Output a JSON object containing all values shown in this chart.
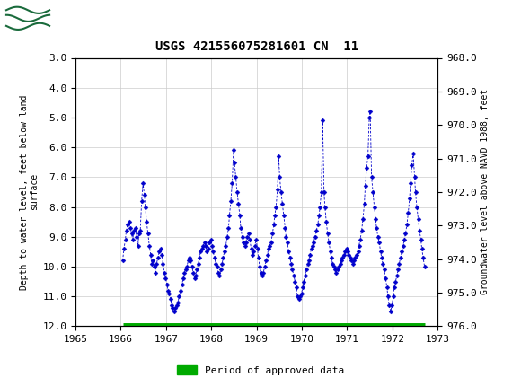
{
  "title": "USGS 421556075281601 CN  11",
  "ylabel_left": "Depth to water level, feet below land\nsurface",
  "ylabel_right": "Groundwater level above NAVD 1988, feet",
  "ylim_left": [
    3.0,
    12.0
  ],
  "ylim_right_top": 976.0,
  "ylim_right_bottom": 968.0,
  "xlim": [
    1965,
    1973
  ],
  "xticks": [
    1965,
    1966,
    1967,
    1968,
    1969,
    1970,
    1971,
    1972,
    1973
  ],
  "yticks_left": [
    3.0,
    4.0,
    5.0,
    6.0,
    7.0,
    8.0,
    9.0,
    10.0,
    11.0,
    12.0
  ],
  "yticks_right": [
    976.0,
    975.0,
    974.0,
    973.0,
    972.0,
    971.0,
    970.0,
    969.0,
    968.0
  ],
  "header_color": "#1a6b3c",
  "line_color": "#0000cc",
  "marker_color": "#0000cc",
  "grid_color": "#cccccc",
  "approved_bar_color": "#00aa00",
  "approved_bar_y": 12.0,
  "approved_bar_x_start": 1966.04,
  "approved_bar_x_end": 1972.71,
  "legend_label": "Period of approved data",
  "background_color": "#ffffff",
  "plot_bg_color": "#ffffff",
  "data_x": [
    1966.04,
    1966.07,
    1966.1,
    1966.12,
    1966.15,
    1966.18,
    1966.21,
    1966.24,
    1966.26,
    1966.29,
    1966.32,
    1966.35,
    1966.38,
    1966.4,
    1966.43,
    1966.46,
    1966.49,
    1966.52,
    1966.54,
    1966.57,
    1966.6,
    1966.63,
    1966.66,
    1966.68,
    1966.71,
    1966.74,
    1966.77,
    1966.79,
    1966.82,
    1966.85,
    1966.88,
    1966.91,
    1966.93,
    1966.96,
    1966.99,
    1967.02,
    1967.04,
    1967.07,
    1967.1,
    1967.13,
    1967.15,
    1967.18,
    1967.21,
    1967.24,
    1967.26,
    1967.29,
    1967.32,
    1967.35,
    1967.38,
    1967.4,
    1967.43,
    1967.46,
    1967.49,
    1967.51,
    1967.54,
    1967.57,
    1967.6,
    1967.63,
    1967.65,
    1967.68,
    1967.71,
    1967.74,
    1967.76,
    1967.79,
    1967.82,
    1967.85,
    1967.88,
    1967.9,
    1967.93,
    1967.96,
    1967.99,
    1968.02,
    1968.04,
    1968.07,
    1968.1,
    1968.13,
    1968.15,
    1968.18,
    1968.21,
    1968.24,
    1968.26,
    1968.29,
    1968.32,
    1968.35,
    1968.38,
    1968.4,
    1968.43,
    1968.46,
    1968.49,
    1968.51,
    1968.54,
    1968.57,
    1968.6,
    1968.63,
    1968.65,
    1968.68,
    1968.71,
    1968.74,
    1968.76,
    1968.79,
    1968.82,
    1968.85,
    1968.88,
    1968.9,
    1968.93,
    1968.96,
    1968.99,
    1969.02,
    1969.04,
    1969.07,
    1969.1,
    1969.13,
    1969.15,
    1969.18,
    1969.21,
    1969.24,
    1969.26,
    1969.29,
    1969.32,
    1969.35,
    1969.38,
    1969.4,
    1969.43,
    1969.46,
    1969.49,
    1969.51,
    1969.54,
    1969.57,
    1969.6,
    1969.63,
    1969.65,
    1969.68,
    1969.71,
    1969.74,
    1969.76,
    1969.79,
    1969.82,
    1969.85,
    1969.88,
    1969.9,
    1969.93,
    1969.96,
    1969.99,
    1970.02,
    1970.04,
    1970.07,
    1970.1,
    1970.13,
    1970.15,
    1970.18,
    1970.21,
    1970.24,
    1970.26,
    1970.29,
    1970.32,
    1970.35,
    1970.38,
    1970.4,
    1970.43,
    1970.46,
    1970.49,
    1970.51,
    1970.54,
    1970.57,
    1970.6,
    1970.63,
    1970.65,
    1970.68,
    1970.71,
    1970.74,
    1970.76,
    1970.79,
    1970.82,
    1970.85,
    1970.88,
    1970.9,
    1970.93,
    1970.96,
    1970.99,
    1971.02,
    1971.04,
    1971.07,
    1971.1,
    1971.13,
    1971.15,
    1971.18,
    1971.21,
    1971.24,
    1971.26,
    1971.29,
    1971.32,
    1971.35,
    1971.38,
    1971.4,
    1971.43,
    1971.46,
    1971.49,
    1971.51,
    1971.54,
    1971.57,
    1971.6,
    1971.63,
    1971.65,
    1971.68,
    1971.71,
    1971.74,
    1971.76,
    1971.79,
    1971.82,
    1971.85,
    1971.88,
    1971.9,
    1971.93,
    1971.96,
    1971.99,
    1972.02,
    1972.04,
    1972.07,
    1972.1,
    1972.13,
    1972.15,
    1972.18,
    1972.21,
    1972.24,
    1972.26,
    1972.29,
    1972.32,
    1972.35,
    1972.38,
    1972.4,
    1972.43,
    1972.46,
    1972.49,
    1972.51,
    1972.54,
    1972.57,
    1972.6,
    1972.63,
    1972.65,
    1972.68,
    1972.71
  ],
  "data_y": [
    9.8,
    9.4,
    9.1,
    8.8,
    8.6,
    8.5,
    8.7,
    8.9,
    9.1,
    8.8,
    8.7,
    9.0,
    9.3,
    8.9,
    8.8,
    7.8,
    7.2,
    7.6,
    8.0,
    8.5,
    8.9,
    9.3,
    9.6,
    9.9,
    9.8,
    10.0,
    10.2,
    9.9,
    9.7,
    9.5,
    9.4,
    9.6,
    9.9,
    10.2,
    10.4,
    10.6,
    10.8,
    10.9,
    11.1,
    11.3,
    11.4,
    11.5,
    11.4,
    11.3,
    11.2,
    11.0,
    10.8,
    10.6,
    10.4,
    10.2,
    10.1,
    10.0,
    9.8,
    9.7,
    9.8,
    10.0,
    10.2,
    10.4,
    10.3,
    10.1,
    9.9,
    9.7,
    9.5,
    9.4,
    9.3,
    9.2,
    9.3,
    9.5,
    9.4,
    9.2,
    9.1,
    9.3,
    9.5,
    9.7,
    9.9,
    10.0,
    10.2,
    10.3,
    10.1,
    9.9,
    9.7,
    9.5,
    9.3,
    9.0,
    8.7,
    8.3,
    7.8,
    7.2,
    6.1,
    6.5,
    7.0,
    7.5,
    7.9,
    8.3,
    8.7,
    9.0,
    9.2,
    9.3,
    9.2,
    9.0,
    8.9,
    9.1,
    9.4,
    9.6,
    9.5,
    9.3,
    9.1,
    9.4,
    9.7,
    10.0,
    10.2,
    10.3,
    10.2,
    10.0,
    9.8,
    9.6,
    9.4,
    9.3,
    9.2,
    8.9,
    8.6,
    8.3,
    8.0,
    7.4,
    6.3,
    7.0,
    7.5,
    7.9,
    8.3,
    8.7,
    9.0,
    9.2,
    9.5,
    9.7,
    9.9,
    10.1,
    10.3,
    10.5,
    10.7,
    11.0,
    11.1,
    11.0,
    10.9,
    10.7,
    10.5,
    10.3,
    10.1,
    9.9,
    9.8,
    9.6,
    9.4,
    9.3,
    9.2,
    9.0,
    8.8,
    8.6,
    8.3,
    8.0,
    7.5,
    5.1,
    7.5,
    8.0,
    8.5,
    8.9,
    9.2,
    9.5,
    9.7,
    9.9,
    10.0,
    10.1,
    10.2,
    10.1,
    10.0,
    9.9,
    9.8,
    9.7,
    9.6,
    9.5,
    9.4,
    9.5,
    9.6,
    9.7,
    9.8,
    9.9,
    9.8,
    9.7,
    9.6,
    9.5,
    9.3,
    9.1,
    8.8,
    8.4,
    7.9,
    7.3,
    6.7,
    6.3,
    5.0,
    4.8,
    7.0,
    7.5,
    8.0,
    8.4,
    8.7,
    9.0,
    9.2,
    9.5,
    9.7,
    9.9,
    10.1,
    10.4,
    10.7,
    11.0,
    11.3,
    11.5,
    11.3,
    11.0,
    10.7,
    10.5,
    10.3,
    10.1,
    9.9,
    9.7,
    9.5,
    9.3,
    9.1,
    8.9,
    8.6,
    8.2,
    7.7,
    7.2,
    6.6,
    6.2,
    7.0,
    7.5,
    8.0,
    8.4,
    8.8,
    9.1,
    9.4,
    9.7,
    10.0
  ]
}
